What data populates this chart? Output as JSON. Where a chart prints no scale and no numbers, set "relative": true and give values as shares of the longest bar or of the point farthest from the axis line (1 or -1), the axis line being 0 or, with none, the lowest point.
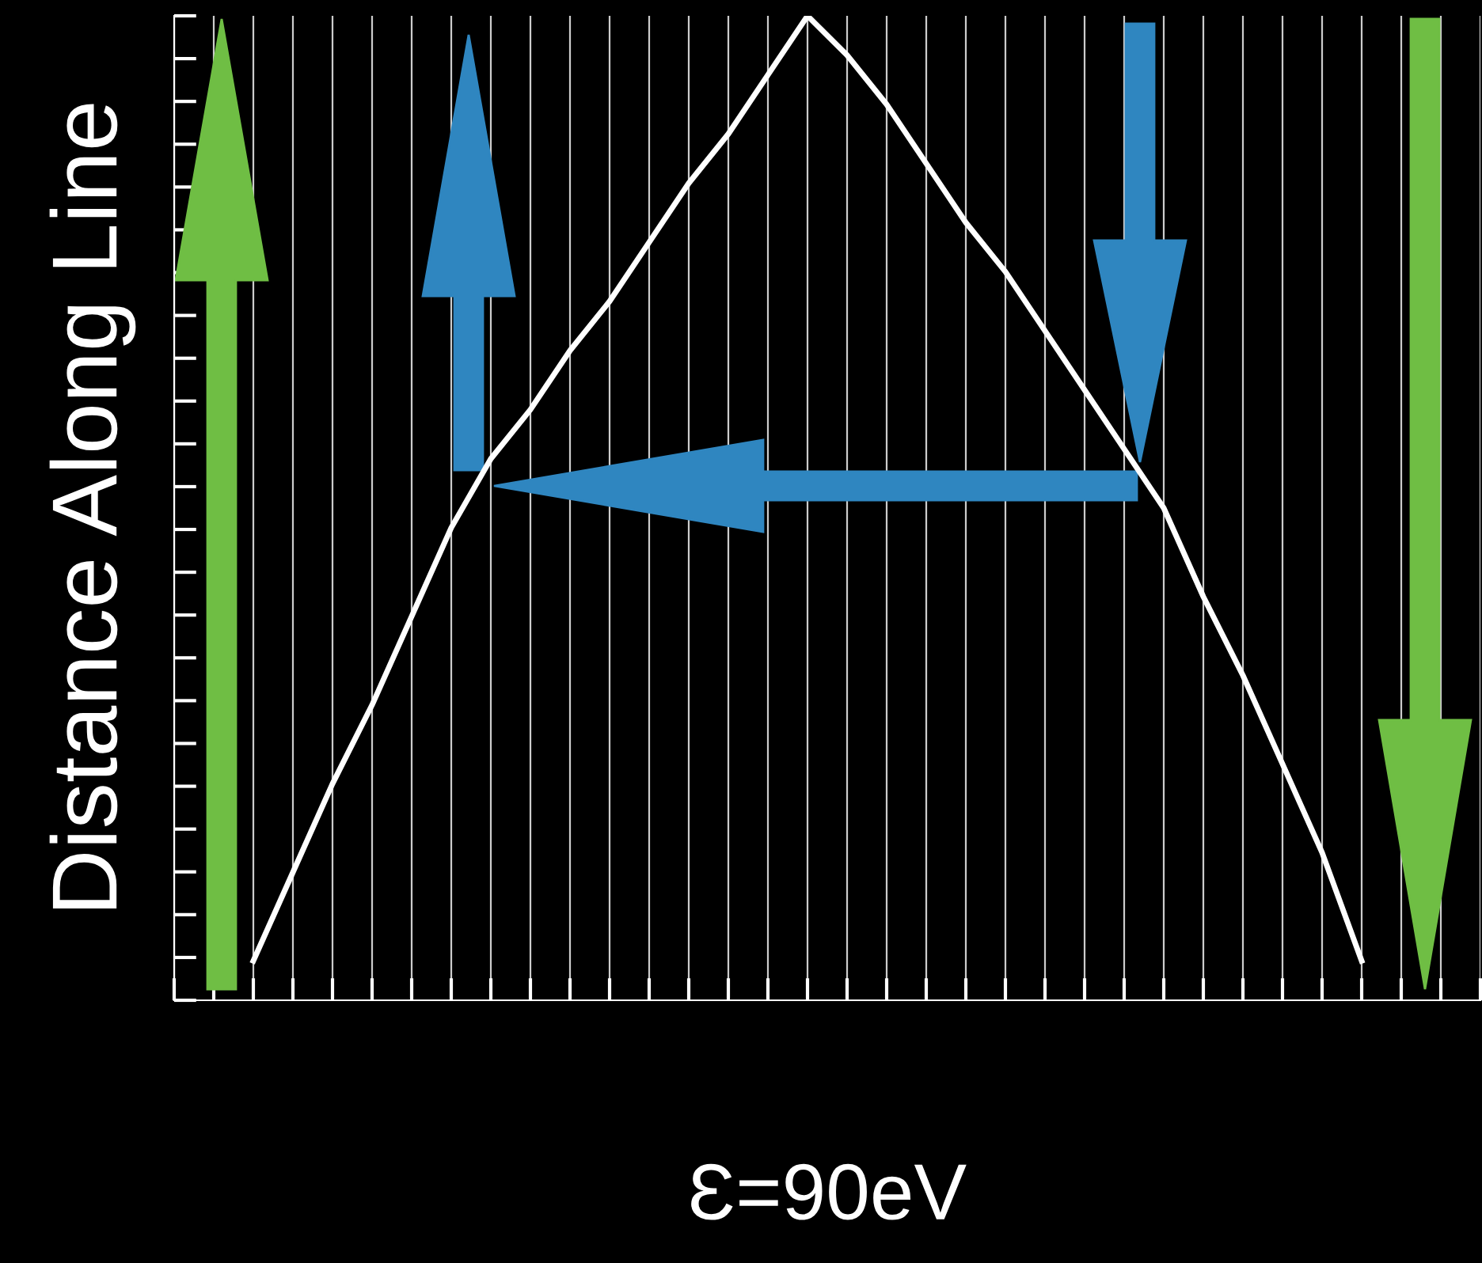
{
  "chart_data": {
    "type": "line",
    "relative": true,
    "ylabel": "Distance Along Line",
    "xlabel": "Ɛ=90eV",
    "categories": [
      null,
      null,
      null,
      null,
      null,
      null,
      null,
      null,
      null,
      null,
      null,
      null,
      null,
      null,
      null,
      null,
      null,
      null,
      null,
      null,
      null,
      null,
      null,
      null,
      null,
      null,
      null,
      null,
      null,
      null,
      null,
      null,
      null,
      null
    ],
    "series": [
      {
        "color": "#ffffff",
        "values": [
          null,
          null,
          0.04,
          0.13,
          0.22,
          0.3,
          0.39,
          0.48,
          0.55,
          0.6,
          0.66,
          0.71,
          0.77,
          0.83,
          0.88,
          0.94,
          1,
          0.96,
          0.91,
          0.85,
          0.79,
          0.74,
          0.68,
          0.62,
          0.56,
          0.5,
          0.41,
          0.33,
          0.24,
          0.15,
          0.04,
          null,
          null,
          null
        ]
      }
    ],
    "grid": "x",
    "marker": "none",
    "line_style": "solid"
  }
}
